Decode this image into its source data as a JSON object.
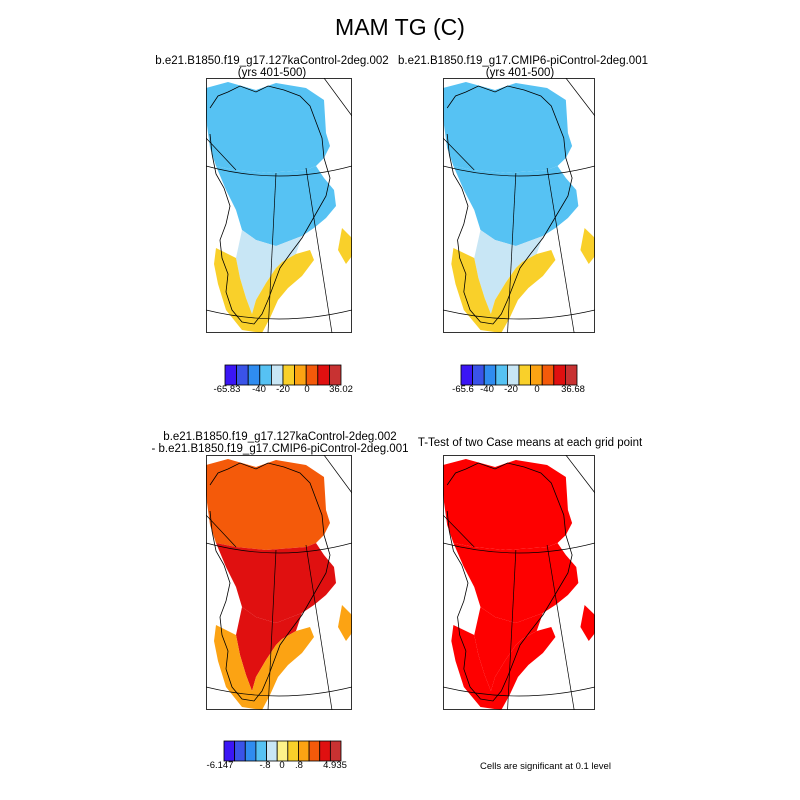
{
  "title": "MAM TG (C)",
  "panels": [
    {
      "id": "case1",
      "title_lines": [
        "b.e21.B1850.f19_g17.127kaControl-2deg.002",
        "(yrs 401-500)"
      ],
      "colorbar": {
        "labels": [
          "-65.83",
          "-40",
          "-20",
          "0",
          "36.02"
        ]
      },
      "region_colors": {
        "north": "#56c2f3",
        "middle": "#56c2f3",
        "south": "#c8e6f5",
        "coast": "#f9d02a"
      }
    },
    {
      "id": "case2",
      "title_lines": [
        "b.e21.B1850.f19_g17.CMIP6-piControl-2deg.001",
        "(yrs 401-500)"
      ],
      "colorbar": {
        "labels": [
          "-65.6",
          "-40",
          "-20",
          "0",
          "36.68"
        ]
      },
      "region_colors": {
        "north": "#56c2f3",
        "middle": "#56c2f3",
        "south": "#c8e6f5",
        "coast": "#f9d02a"
      }
    },
    {
      "id": "difference",
      "title_lines": [
        "b.e21.B1850.f19_g17.127kaControl-2deg.002",
        "- b.e21.B1850.f19_g17.CMIP6-piControl-2deg.001"
      ],
      "colorbar": {
        "labels": [
          "-6.147",
          "-.8",
          "0",
          ".8",
          "4.935"
        ]
      },
      "region_colors": {
        "north": "#f45a0a",
        "middle": "#e01010",
        "south": "#e01010",
        "coast": "#fca313"
      }
    },
    {
      "id": "ttest",
      "title_lines": [
        "T-Test of two Case means at each grid point"
      ],
      "note": "Cells are significant at 0.1 level",
      "region_colors": {
        "north": "#fe0000",
        "middle": "#fe0000",
        "south": "#fe0000",
        "coast": "#fe0000"
      }
    }
  ],
  "colors": {
    "main_cbar": [
      "#3b16f5",
      "#3a53e8",
      "#2f8cf0",
      "#56c2f3",
      "#c8e6f5",
      "#f9d02a",
      "#fca313",
      "#f45a0a",
      "#e01010",
      "#c83232"
    ],
    "diff_cbar": [
      "#3b16f5",
      "#3a53e8",
      "#2f8cf0",
      "#56c2f3",
      "#c8e6f5",
      "#fdf28a",
      "#f9d02a",
      "#fca313",
      "#f45a0a",
      "#e01010",
      "#c83232"
    ]
  }
}
